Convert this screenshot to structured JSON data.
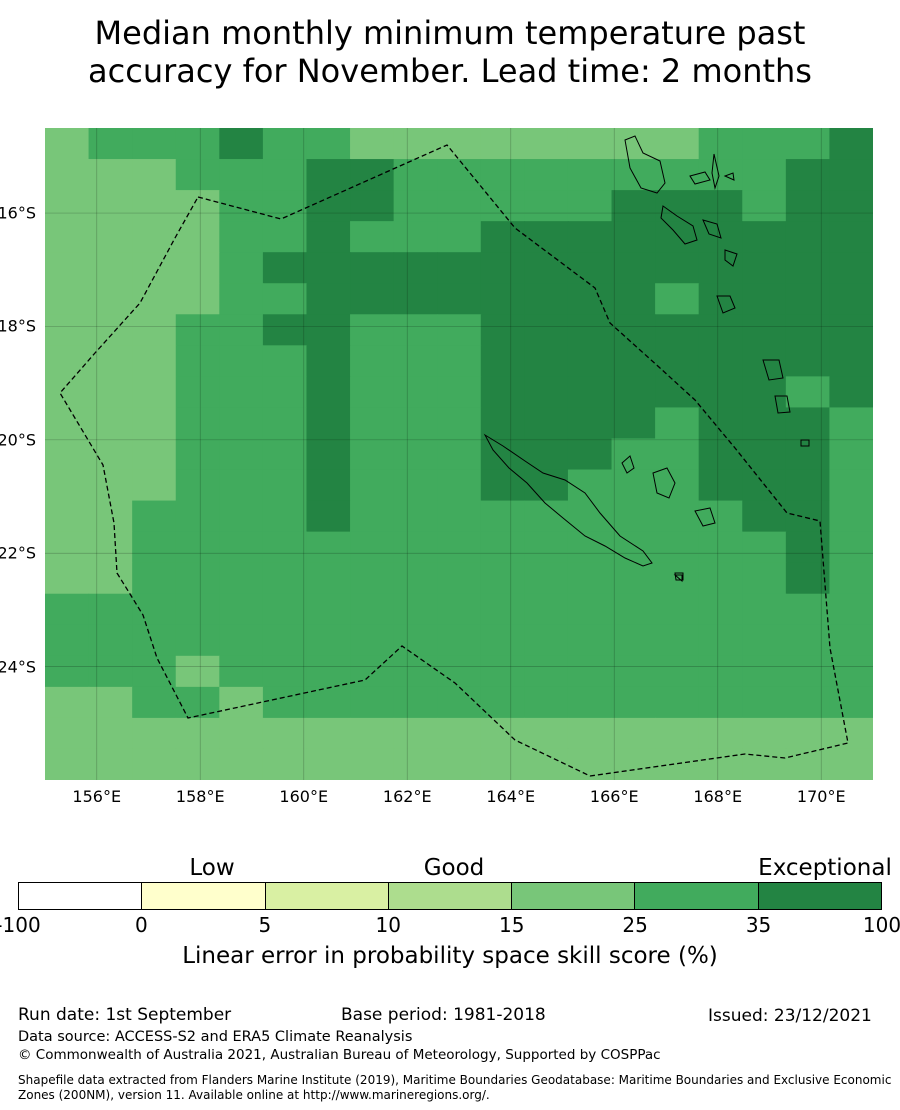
{
  "title_line1": "Median monthly minimum temperature past",
  "title_line2": "accuracy for November. Lead time: 2 months",
  "map": {
    "lat_labels": [
      "16°S",
      "18°S",
      "20°S",
      "22°S",
      "24°S"
    ],
    "lon_labels": [
      "156°E",
      "158°E",
      "160°E",
      "162°E",
      "164°E",
      "166°E",
      "168°E",
      "170°E"
    ],
    "lon_range": [
      155.0,
      171.0
    ],
    "lat_range": [
      -26.0,
      -14.5
    ],
    "grid_step_deg": 2,
    "grid_lines": true,
    "zone_boundary": "dashed",
    "levels": [
      [
        4,
        5,
        5,
        5,
        6,
        5,
        5,
        4,
        4,
        4,
        4,
        4,
        4,
        4,
        4,
        5,
        5,
        5,
        6
      ],
      [
        4,
        4,
        4,
        5,
        5,
        5,
        6,
        6,
        5,
        5,
        5,
        5,
        5,
        5,
        5,
        5,
        5,
        6,
        6
      ],
      [
        4,
        4,
        4,
        4,
        5,
        5,
        6,
        6,
        5,
        5,
        5,
        5,
        5,
        6,
        6,
        6,
        5,
        6,
        6
      ],
      [
        4,
        4,
        4,
        4,
        5,
        5,
        6,
        5,
        5,
        5,
        6,
        6,
        6,
        6,
        6,
        6,
        6,
        6,
        6
      ],
      [
        4,
        4,
        4,
        4,
        5,
        6,
        6,
        6,
        6,
        6,
        6,
        6,
        6,
        6,
        6,
        6,
        6,
        6,
        6
      ],
      [
        4,
        4,
        4,
        4,
        5,
        5,
        6,
        6,
        6,
        6,
        6,
        6,
        6,
        6,
        5,
        6,
        6,
        6,
        6
      ],
      [
        4,
        4,
        4,
        5,
        5,
        6,
        6,
        5,
        5,
        5,
        6,
        6,
        6,
        6,
        6,
        6,
        6,
        6,
        6
      ],
      [
        4,
        4,
        4,
        5,
        5,
        5,
        6,
        5,
        5,
        5,
        6,
        6,
        6,
        6,
        6,
        6,
        6,
        6,
        6
      ],
      [
        4,
        4,
        4,
        5,
        5,
        5,
        6,
        5,
        5,
        5,
        6,
        6,
        6,
        6,
        6,
        6,
        6,
        5,
        6
      ],
      [
        4,
        4,
        4,
        5,
        5,
        5,
        6,
        5,
        5,
        5,
        6,
        6,
        6,
        6,
        5,
        6,
        6,
        6,
        5
      ],
      [
        4,
        4,
        4,
        5,
        5,
        5,
        6,
        5,
        5,
        5,
        6,
        6,
        6,
        5,
        5,
        6,
        6,
        6,
        5
      ],
      [
        4,
        4,
        4,
        5,
        5,
        5,
        6,
        5,
        5,
        5,
        6,
        6,
        5,
        5,
        5,
        6,
        6,
        6,
        5
      ],
      [
        4,
        4,
        5,
        5,
        5,
        5,
        6,
        5,
        5,
        5,
        5,
        5,
        5,
        5,
        5,
        5,
        6,
        6,
        5
      ],
      [
        4,
        4,
        5,
        5,
        5,
        5,
        5,
        5,
        5,
        5,
        5,
        5,
        5,
        5,
        5,
        5,
        5,
        6,
        5
      ],
      [
        4,
        4,
        5,
        5,
        5,
        5,
        5,
        5,
        5,
        5,
        5,
        5,
        5,
        5,
        5,
        5,
        5,
        6,
        5
      ],
      [
        5,
        5,
        5,
        5,
        5,
        5,
        5,
        5,
        5,
        5,
        5,
        5,
        5,
        5,
        5,
        5,
        5,
        5,
        5
      ],
      [
        5,
        5,
        5,
        5,
        5,
        5,
        5,
        5,
        5,
        5,
        5,
        5,
        5,
        5,
        5,
        5,
        5,
        5,
        5
      ],
      [
        5,
        5,
        5,
        4,
        5,
        5,
        5,
        5,
        5,
        5,
        5,
        5,
        5,
        5,
        5,
        5,
        5,
        5,
        5
      ],
      [
        4,
        4,
        5,
        5,
        4,
        5,
        5,
        5,
        5,
        5,
        5,
        5,
        5,
        5,
        5,
        5,
        5,
        5,
        5
      ],
      [
        4,
        4,
        4,
        4,
        4,
        4,
        4,
        4,
        4,
        4,
        4,
        4,
        4,
        4,
        4,
        4,
        4,
        4,
        4
      ],
      [
        4,
        4,
        4,
        4,
        4,
        4,
        4,
        4,
        4,
        4,
        4,
        4,
        4,
        4,
        4,
        4,
        4,
        4,
        4
      ]
    ]
  },
  "legend": {
    "categories": [
      "Low",
      "Good",
      "Exceptional"
    ],
    "ticks": [
      "-100",
      "0",
      "5",
      "10",
      "15",
      "25",
      "35",
      "100"
    ],
    "colors": [
      "#ffffff",
      "#ffffcc",
      "#d9f0a3",
      "#addd8e",
      "#78c679",
      "#41ab5d",
      "#238443"
    ],
    "title": "Linear error in probability space skill score (%)"
  },
  "footer": {
    "run_date": "Run date: 1st September",
    "base_period": "Base period: 1981-2018",
    "issued": "Issued: 23/12/2021",
    "data_source": "Data source: ACCESS-S2 and ERA5 Climate Reanalysis",
    "copyright": "© Commonwealth of Australia 2021, Australian Bureau of Meteorology, Supported by COSPPac",
    "shapefile": "Shapefile data extracted from Flanders Marine Institute (2019), Maritime Boundaries Geodatabase: Maritime Boundaries and Exclusive Economic Zones (200NM), version 11. Available online at http://www.marineregions.org/."
  }
}
